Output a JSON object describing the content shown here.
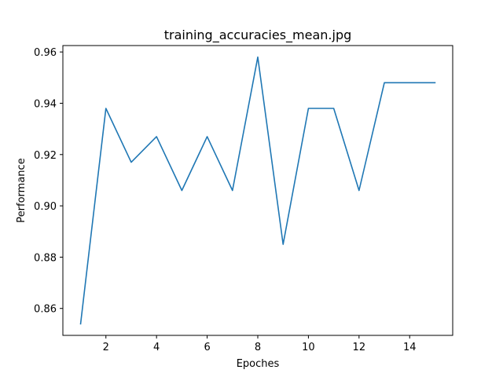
{
  "chart_data": {
    "type": "line",
    "title": "training_accuracies_mean.jpg",
    "xlabel": "Epoches",
    "ylabel": "Performance",
    "xlim": [
      0.3,
      15.7
    ],
    "ylim": [
      0.8495,
      0.9625
    ],
    "x_ticks": [
      2,
      4,
      6,
      8,
      10,
      12,
      14
    ],
    "y_ticks": [
      0.86,
      0.88,
      0.9,
      0.92,
      0.94,
      0.96
    ],
    "y_tick_labels": [
      "0.86",
      "0.88",
      "0.90",
      "0.92",
      "0.94",
      "0.96"
    ],
    "grid": false,
    "series": [
      {
        "color": "#1f77b4",
        "x": [
          1,
          2,
          3,
          4,
          5,
          6,
          7,
          8,
          9,
          10,
          11,
          12,
          13,
          14,
          15
        ],
        "y": [
          0.854,
          0.938,
          0.917,
          0.927,
          0.906,
          0.927,
          0.906,
          0.958,
          0.885,
          0.938,
          0.938,
          0.906,
          0.948,
          0.948,
          0.948
        ]
      }
    ]
  }
}
